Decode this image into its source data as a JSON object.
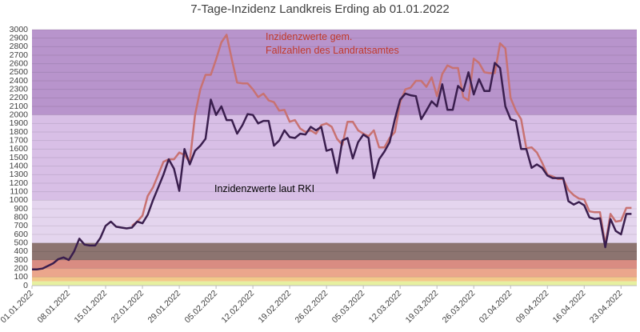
{
  "chart_data": {
    "type": "line",
    "title": "7-Tage-Inzidenz Landkreis Erding ab 01.01.2022",
    "categories": [
      "01.01.2022",
      null,
      null,
      null,
      null,
      null,
      null,
      "08.01.2022",
      null,
      null,
      null,
      null,
      null,
      null,
      "15.01.2022",
      null,
      null,
      null,
      null,
      null,
      null,
      "22.01.2022",
      null,
      null,
      null,
      null,
      null,
      null,
      "29.01.2022",
      null,
      null,
      null,
      null,
      null,
      null,
      "05.02.2022",
      null,
      null,
      null,
      null,
      null,
      null,
      "12.02.2022",
      null,
      null,
      null,
      null,
      null,
      null,
      "19.02.2022",
      null,
      null,
      null,
      null,
      null,
      null,
      "26.02.2022",
      null,
      null,
      null,
      null,
      null,
      null,
      "05.03.2022",
      null,
      null,
      null,
      null,
      null,
      null,
      "12.03.2022",
      null,
      null,
      null,
      null,
      null,
      null,
      "19.03.2022",
      null,
      null,
      null,
      null,
      null,
      null,
      "26.03.2022",
      null,
      null,
      null,
      null,
      null,
      null,
      "02.04.2022",
      null,
      null,
      null,
      null,
      null,
      null,
      "09.04.2022",
      null,
      null,
      null,
      null,
      null,
      null,
      "16.04.2022",
      null,
      null,
      null,
      null,
      null,
      null,
      "23.04.2022",
      null,
      null
    ],
    "series": [
      {
        "name": "Inzidenzwerte gem.\nFallzahlen des Landratsamtes",
        "color": "#c87272",
        "values": [
          null,
          null,
          null,
          null,
          null,
          null,
          null,
          null,
          null,
          null,
          null,
          null,
          null,
          null,
          null,
          null,
          null,
          null,
          null,
          700,
          750,
          820,
          1050,
          1150,
          1300,
          1450,
          1480,
          1480,
          1560,
          1530,
          1450,
          2000,
          2300,
          2470,
          2470,
          2650,
          2850,
          2940,
          2650,
          2380,
          2370,
          2370,
          2300,
          2210,
          2250,
          2170,
          2150,
          2050,
          2060,
          1920,
          1940,
          1840,
          1800,
          1820,
          1780,
          1880,
          1900,
          1860,
          1720,
          1650,
          1920,
          1920,
          1820,
          1780,
          1750,
          1820,
          1620,
          1620,
          1730,
          1800,
          2150,
          2300,
          2320,
          2400,
          2400,
          2330,
          2440,
          2220,
          2480,
          2580,
          2550,
          2550,
          2210,
          2170,
          2660,
          2610,
          2500,
          2490,
          2490,
          2840,
          2780,
          2200,
          2050,
          1950,
          1610,
          1620,
          1560,
          1440,
          1300,
          1280,
          1250,
          1250,
          1120,
          1060,
          1020,
          1010,
          870,
          860,
          860,
          480,
          840,
          750,
          760,
          910,
          910
        ]
      },
      {
        "name": "Inzidenzwerte laut RKI",
        "color": "#3a1e4e",
        "values": [
          190,
          190,
          200,
          230,
          260,
          310,
          330,
          300,
          400,
          550,
          480,
          470,
          470,
          560,
          700,
          750,
          690,
          680,
          670,
          680,
          750,
          730,
          830,
          1000,
          1150,
          1300,
          1480,
          1370,
          1110,
          1600,
          1420,
          1580,
          1640,
          1720,
          2180,
          2000,
          2100,
          1940,
          1940,
          1780,
          1880,
          2010,
          2000,
          1900,
          1930,
          1930,
          1640,
          1700,
          1820,
          1740,
          1730,
          1780,
          1770,
          1860,
          1820,
          1860,
          1580,
          1600,
          1320,
          1700,
          1730,
          1490,
          1680,
          1770,
          1730,
          1260,
          1480,
          1570,
          1680,
          1950,
          2180,
          2250,
          2230,
          2220,
          1950,
          2050,
          2160,
          2100,
          2360,
          2060,
          2060,
          2340,
          2280,
          2500,
          2240,
          2420,
          2280,
          2280,
          2610,
          2550,
          2100,
          1950,
          1930,
          1600,
          1600,
          1380,
          1420,
          1380,
          1290,
          1260,
          1260,
          1260,
          990,
          950,
          980,
          940,
          800,
          780,
          790,
          450,
          780,
          640,
          600,
          840,
          840
        ]
      }
    ],
    "ylim": [
      0,
      3000
    ],
    "yticks": [
      0,
      100,
      200,
      300,
      400,
      500,
      600,
      700,
      800,
      900,
      1000,
      1100,
      1200,
      1300,
      1400,
      1500,
      1600,
      1700,
      1800,
      1900,
      2000,
      2100,
      2200,
      2300,
      2400,
      2500,
      2600,
      2700,
      2800,
      2900,
      3000
    ],
    "grid": true,
    "bands": [
      {
        "from": 0,
        "to": 50,
        "color": "#e6f0a0"
      },
      {
        "from": 50,
        "to": 100,
        "color": "#f3c98a"
      },
      {
        "from": 100,
        "to": 200,
        "color": "#eba68c"
      },
      {
        "from": 200,
        "to": 300,
        "color": "#d98c82"
      },
      {
        "from": 300,
        "to": 500,
        "color": "#8c7470"
      },
      {
        "from": 500,
        "to": 1000,
        "color": "#e4d5ee"
      },
      {
        "from": 1000,
        "to": 2000,
        "color": "#d8bfe6"
      },
      {
        "from": 2000,
        "to": 3000,
        "color": "#b894cc"
      }
    ]
  }
}
